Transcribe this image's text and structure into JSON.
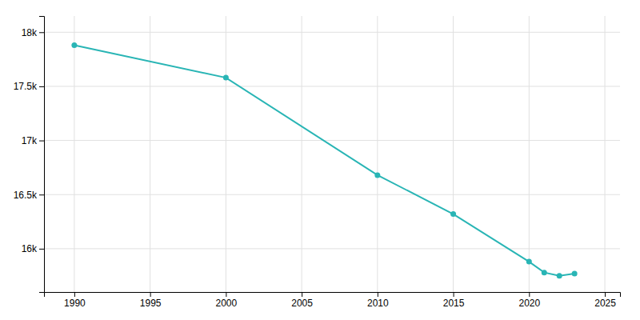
{
  "chart_data": {
    "type": "line",
    "x": [
      1990,
      2000,
      2010,
      2015,
      2020,
      2021,
      2022,
      2023
    ],
    "values": [
      17880,
      17580,
      16680,
      16320,
      15880,
      15780,
      15750,
      15770
    ],
    "color": "#29b5b5",
    "marker": "circle",
    "xlim": [
      1988,
      2026
    ],
    "xticks": [
      1990,
      1995,
      2000,
      2005,
      2010,
      2015,
      2020,
      2025
    ],
    "ylim": [
      15600,
      18150
    ],
    "yticks": [
      {
        "value": 16000,
        "label": "16k"
      },
      {
        "value": 16500,
        "label": "16.5k"
      },
      {
        "value": 17000,
        "label": "17k"
      },
      {
        "value": 17500,
        "label": "17.5k"
      },
      {
        "value": 18000,
        "label": "18k"
      }
    ],
    "grid": true
  }
}
